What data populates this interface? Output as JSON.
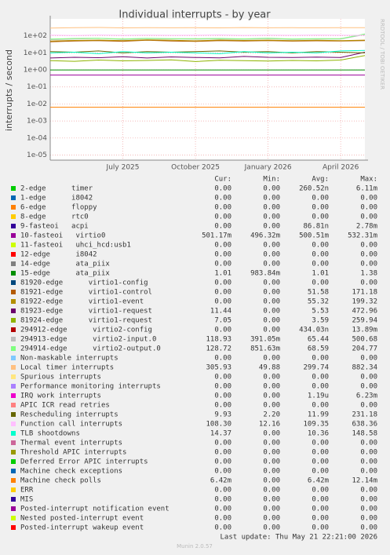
{
  "chart_data": {
    "type": "line",
    "title": "Individual interrupts - by year",
    "y_label": "interrupts / second",
    "side_note": "RRDTOOL / TOBI OETIKER",
    "footer": "Munin 2.0.57",
    "last_update": "Last update: Thu May 21 22:21:00 2026",
    "log_scale": true,
    "grid": true,
    "legend_headers": [
      "Cur:",
      "Min:",
      "Avg:",
      "Max:"
    ],
    "x": [
      "2025-04",
      "2025-05",
      "2025-06",
      "2025-07",
      "2025-08",
      "2025-09",
      "2025-10",
      "2025-11",
      "2025-12",
      "2026-01",
      "2026-02",
      "2026-03",
      "2026-04",
      "2026-05"
    ],
    "xlim": [
      "2025-04",
      "2026-05"
    ],
    "xticks": [
      {
        "value": "2025-07",
        "label": "July 2025"
      },
      {
        "value": "2025-10",
        "label": "October 2025"
      },
      {
        "value": "2026-01",
        "label": "January 2026"
      },
      {
        "value": "2026-04",
        "label": "April 2026"
      }
    ],
    "ylim": [
      5e-06,
      1000
    ],
    "yticks": [
      {
        "value": 1e-05,
        "label": "1e-05"
      },
      {
        "value": 0.0001,
        "label": "1e-04"
      },
      {
        "value": 0.001,
        "label": "1e-03"
      },
      {
        "value": 0.01,
        "label": "1e-02"
      },
      {
        "value": 0.1,
        "label": "1e-01"
      },
      {
        "value": 1,
        "label": "1e+00"
      },
      {
        "value": 10,
        "label": "1e+01"
      },
      {
        "value": 100,
        "label": "1e+02"
      }
    ],
    "series": [
      {
        "name": "2-edge      timer",
        "color": "#00CC00",
        "stats": [
          "0.00",
          "0.00",
          "260.52n",
          "6.11m"
        ],
        "values": [
          null,
          null,
          null,
          null,
          null,
          null,
          null,
          null,
          null,
          null,
          null,
          null,
          null,
          null
        ]
      },
      {
        "name": "1-edge      i8042",
        "color": "#0066B3",
        "stats": [
          "0.00",
          "0.00",
          "0.00",
          "0.00"
        ],
        "values": [
          null,
          null,
          null,
          null,
          null,
          null,
          null,
          null,
          null,
          null,
          null,
          null,
          null,
          null
        ]
      },
      {
        "name": "6-edge      floppy",
        "color": "#FF8000",
        "stats": [
          "0.00",
          "0.00",
          "0.00",
          "0.00"
        ],
        "values": [
          null,
          null,
          null,
          null,
          null,
          null,
          null,
          null,
          null,
          null,
          null,
          null,
          null,
          null
        ]
      },
      {
        "name": "8-edge      rtc0",
        "color": "#FFCC00",
        "stats": [
          "0.00",
          "0.00",
          "0.00",
          "0.00"
        ],
        "values": [
          null,
          null,
          null,
          null,
          null,
          null,
          null,
          null,
          null,
          null,
          null,
          null,
          null,
          null
        ]
      },
      {
        "name": "9-fasteoi   acpi",
        "color": "#330099",
        "stats": [
          "0.00",
          "0.00",
          "86.81n",
          "2.78m"
        ],
        "values": [
          null,
          null,
          null,
          null,
          null,
          null,
          null,
          null,
          null,
          null,
          null,
          null,
          null,
          null
        ]
      },
      {
        "name": "10-fasteoi   virtio0",
        "color": "#990099",
        "stats": [
          "501.17m",
          "496.32m",
          "500.51m",
          "532.31m"
        ],
        "values": [
          0.5,
          0.5,
          0.5,
          0.5,
          0.5,
          0.5,
          0.5,
          0.5,
          0.5,
          0.5,
          0.5,
          0.5,
          0.5,
          0.5
        ]
      },
      {
        "name": "11-fasteoi   uhci_hcd:usb1",
        "color": "#CCFF00",
        "stats": [
          "0.00",
          "0.00",
          "0.00",
          "0.00"
        ],
        "values": [
          null,
          null,
          null,
          null,
          null,
          null,
          null,
          null,
          null,
          null,
          null,
          null,
          null,
          null
        ]
      },
      {
        "name": "12-edge      i8042",
        "color": "#FF0000",
        "stats": [
          "0.00",
          "0.00",
          "0.00",
          "0.00"
        ],
        "values": [
          null,
          null,
          null,
          null,
          null,
          null,
          null,
          null,
          null,
          null,
          null,
          null,
          null,
          null
        ]
      },
      {
        "name": "14-edge      ata_piix",
        "color": "#808080",
        "stats": [
          "0.00",
          "0.00",
          "0.00",
          "0.00"
        ],
        "values": [
          null,
          null,
          null,
          null,
          null,
          null,
          null,
          null,
          null,
          null,
          null,
          null,
          null,
          null
        ]
      },
      {
        "name": "15-edge      ata_piix",
        "color": "#008F00",
        "stats": [
          "1.01",
          "983.84m",
          "1.01",
          "1.38"
        ],
        "values": [
          1,
          1,
          1,
          1,
          1,
          1,
          1,
          1,
          1,
          1,
          1,
          1,
          1,
          1
        ]
      },
      {
        "name": "81920-edge      virtio1-config",
        "color": "#00487D",
        "stats": [
          "0.00",
          "0.00",
          "0.00",
          "0.00"
        ],
        "values": [
          null,
          null,
          null,
          null,
          null,
          null,
          null,
          null,
          null,
          null,
          null,
          null,
          null,
          null
        ]
      },
      {
        "name": "81921-edge      virtio1-control",
        "color": "#B35A00",
        "stats": [
          "0.00",
          "0.00",
          "51.58",
          "171.18"
        ],
        "values": [
          45,
          50,
          52,
          48,
          55,
          50,
          47,
          52,
          50,
          53,
          49,
          51,
          50,
          52
        ]
      },
      {
        "name": "81922-edge      virtio1-event",
        "color": "#B38F00",
        "stats": [
          "0.00",
          "0.00",
          "55.32",
          "199.32"
        ],
        "values": [
          50,
          54,
          56,
          52,
          58,
          55,
          51,
          57,
          54,
          56,
          53,
          55,
          52,
          56
        ]
      },
      {
        "name": "81923-edge      virtio1-request",
        "color": "#6B006B",
        "stats": [
          "11.44",
          "0.00",
          "5.53",
          "472.96"
        ],
        "values": [
          5,
          5.5,
          5.2,
          6,
          5,
          5.8,
          5.4,
          5.1,
          6.2,
          5.5,
          5.3,
          5.6,
          5.4,
          11
        ]
      },
      {
        "name": "81924-edge      virtio1-request",
        "color": "#8FB300",
        "stats": [
          "7.05",
          "0.00",
          "3.59",
          "259.94"
        ],
        "values": [
          3.5,
          3.2,
          3.8,
          3.4,
          3.6,
          3.9,
          3.1,
          3.7,
          3.5,
          3.3,
          3.6,
          3.4,
          3.8,
          7
        ]
      },
      {
        "name": "294912-edge      virtio2-config",
        "color": "#B30000",
        "stats": [
          "0.00",
          "0.00",
          "434.03n",
          "13.89m"
        ],
        "values": [
          null,
          null,
          null,
          null,
          null,
          null,
          null,
          null,
          null,
          null,
          null,
          null,
          null,
          null
        ]
      },
      {
        "name": "294913-edge      virtio2-input.0",
        "color": "#BEBEBE",
        "stats": [
          "118.93",
          "391.05m",
          "65.44",
          "500.68"
        ],
        "values": [
          60,
          65,
          70,
          62,
          68,
          66,
          64,
          67,
          63,
          69,
          61,
          66,
          65,
          119
        ]
      },
      {
        "name": "294914-edge      virtio2-output.0",
        "color": "#80FF80",
        "stats": [
          "128.72",
          "851.63m",
          "68.59",
          "204.77"
        ],
        "values": [
          65,
          70,
          72,
          66,
          71,
          69,
          68,
          70,
          67,
          72,
          66,
          69,
          68,
          129
        ]
      },
      {
        "name": "Non-maskable interrupts",
        "color": "#80C9FF",
        "stats": [
          "0.00",
          "0.00",
          "0.00",
          "0.00"
        ],
        "values": [
          null,
          null,
          null,
          null,
          null,
          null,
          null,
          null,
          null,
          null,
          null,
          null,
          null,
          null
        ]
      },
      {
        "name": "Local timer interrupts",
        "color": "#FFC080",
        "stats": [
          "305.93",
          "49.88",
          "299.74",
          "882.34"
        ],
        "values": [
          290,
          300,
          310,
          295,
          305,
          298,
          302,
          296,
          308,
          299,
          301,
          297,
          303,
          306
        ]
      },
      {
        "name": "Spurious interrupts",
        "color": "#FFE680",
        "stats": [
          "0.00",
          "0.00",
          "0.00",
          "0.00"
        ],
        "values": [
          null,
          null,
          null,
          null,
          null,
          null,
          null,
          null,
          null,
          null,
          null,
          null,
          null,
          null
        ]
      },
      {
        "name": "Performance monitoring interrupts",
        "color": "#AA80FF",
        "stats": [
          "0.00",
          "0.00",
          "0.00",
          "0.00"
        ],
        "values": [
          null,
          null,
          null,
          null,
          null,
          null,
          null,
          null,
          null,
          null,
          null,
          null,
          null,
          null
        ]
      },
      {
        "name": "IRQ work interrupts",
        "color": "#EE00CC",
        "stats": [
          "0.00",
          "0.00",
          "1.19u",
          "6.23m"
        ],
        "values": [
          null,
          null,
          null,
          null,
          null,
          null,
          null,
          null,
          null,
          null,
          null,
          null,
          null,
          null
        ]
      },
      {
        "name": "APIC ICR read retries",
        "color": "#FF8080",
        "stats": [
          "0.00",
          "0.00",
          "0.00",
          "0.00"
        ],
        "values": [
          null,
          null,
          null,
          null,
          null,
          null,
          null,
          null,
          null,
          null,
          null,
          null,
          null,
          null
        ]
      },
      {
        "name": "Rescheduling interrupts",
        "color": "#666600",
        "stats": [
          "9.93",
          "2.20",
          "11.99",
          "231.18"
        ],
        "values": [
          12,
          11,
          13,
          10,
          12,
          11,
          12,
          13,
          11,
          12,
          10,
          12,
          11,
          10
        ]
      },
      {
        "name": "Function call interrupts",
        "color": "#FFBFFF",
        "stats": [
          "108.30",
          "12.16",
          "109.35",
          "638.36"
        ],
        "values": [
          110,
          105,
          112,
          108,
          111,
          107,
          109,
          113,
          106,
          110,
          108,
          112,
          109,
          108
        ]
      },
      {
        "name": "TLB shootdowns",
        "color": "#00FFCC",
        "stats": [
          "14.37",
          "0.00",
          "10.36",
          "148.58"
        ],
        "values": [
          10,
          11,
          9,
          12,
          10,
          11,
          10,
          9,
          12,
          10,
          11,
          10,
          13,
          14
        ]
      },
      {
        "name": "Thermal event interrupts",
        "color": "#CC6699",
        "stats": [
          "0.00",
          "0.00",
          "0.00",
          "0.00"
        ],
        "values": [
          null,
          null,
          null,
          null,
          null,
          null,
          null,
          null,
          null,
          null,
          null,
          null,
          null,
          null
        ]
      },
      {
        "name": "Threshold APIC interrupts",
        "color": "#999900",
        "stats": [
          "0.00",
          "0.00",
          "0.00",
          "0.00"
        ],
        "values": [
          null,
          null,
          null,
          null,
          null,
          null,
          null,
          null,
          null,
          null,
          null,
          null,
          null,
          null
        ]
      },
      {
        "name": "Deferred Error APIC interrupts",
        "color": "#00CC00",
        "stats": [
          "0.00",
          "0.00",
          "0.00",
          "0.00"
        ],
        "values": [
          null,
          null,
          null,
          null,
          null,
          null,
          null,
          null,
          null,
          null,
          null,
          null,
          null,
          null
        ]
      },
      {
        "name": "Machine check exceptions",
        "color": "#0066B3",
        "stats": [
          "0.00",
          "0.00",
          "0.00",
          "0.00"
        ],
        "values": [
          null,
          null,
          null,
          null,
          null,
          null,
          null,
          null,
          null,
          null,
          null,
          null,
          null,
          null
        ]
      },
      {
        "name": "Machine check polls",
        "color": "#FF8000",
        "stats": [
          "6.42m",
          "0.00",
          "6.42m",
          "12.14m"
        ],
        "values": [
          0.0064,
          0.0064,
          0.0064,
          0.0064,
          0.0064,
          0.0064,
          0.0064,
          0.0064,
          0.0064,
          0.0064,
          0.0064,
          0.0064,
          0.0064,
          0.0064
        ]
      },
      {
        "name": "ERR",
        "color": "#FFCC00",
        "stats": [
          "0.00",
          "0.00",
          "0.00",
          "0.00"
        ],
        "values": [
          null,
          null,
          null,
          null,
          null,
          null,
          null,
          null,
          null,
          null,
          null,
          null,
          null,
          null
        ]
      },
      {
        "name": "MIS",
        "color": "#330099",
        "stats": [
          "0.00",
          "0.00",
          "0.00",
          "0.00"
        ],
        "values": [
          null,
          null,
          null,
          null,
          null,
          null,
          null,
          null,
          null,
          null,
          null,
          null,
          null,
          null
        ]
      },
      {
        "name": "Posted-interrupt notification event",
        "color": "#990099",
        "stats": [
          "0.00",
          "0.00",
          "0.00",
          "0.00"
        ],
        "values": [
          null,
          null,
          null,
          null,
          null,
          null,
          null,
          null,
          null,
          null,
          null,
          null,
          null,
          null
        ]
      },
      {
        "name": "Nested posted-interrupt event",
        "color": "#CCFF00",
        "stats": [
          "0.00",
          "0.00",
          "0.00",
          "0.00"
        ],
        "values": [
          null,
          null,
          null,
          null,
          null,
          null,
          null,
          null,
          null,
          null,
          null,
          null,
          null,
          null
        ]
      },
      {
        "name": "Posted-interrupt wakeup event",
        "color": "#FF0000",
        "stats": [
          "0.00",
          "0.00",
          "0.00",
          "0.00"
        ],
        "values": [
          null,
          null,
          null,
          null,
          null,
          null,
          null,
          null,
          null,
          null,
          null,
          null,
          null,
          null
        ]
      }
    ]
  }
}
